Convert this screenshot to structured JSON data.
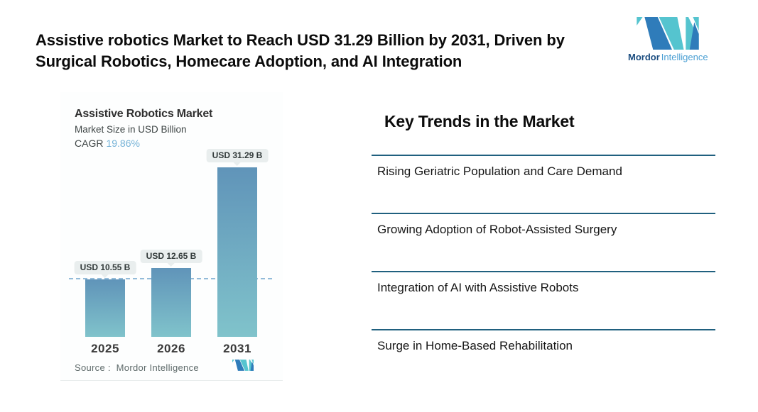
{
  "headline": {
    "text": "Assistive robotics Market to Reach USD 31.29 Billion by 2031, Driven by Surgical Robotics, Homecare Adoption, and AI Integration"
  },
  "brand": {
    "word_bold": "Mordor",
    "word_light": "Intelligence",
    "logo_teal": "#55c4cf",
    "logo_blue": "#2f7cba"
  },
  "chart": {
    "title": "Assistive Robotics Market",
    "subtitle": "Market Size in USD Billion",
    "cagr_label": "CAGR",
    "cagr_value": "19.86%",
    "source_label": "Source :",
    "source_value": "Mordor Intelligence",
    "bars": [
      {
        "year": "2025",
        "label": "USD 10.55 B",
        "value": 10.55
      },
      {
        "year": "2026",
        "label": "USD 12.65 B",
        "value": 12.65
      },
      {
        "year": "2031",
        "label": "USD 31.29 B",
        "value": 31.29
      }
    ],
    "colors": {
      "bar_top": "#6094b9",
      "bar_bottom": "#80c3cb",
      "dashed_line": "#93bbd9",
      "pill_bg": "#e9eeee",
      "divider": "#20607f",
      "cagr_value": "#74b2d7"
    }
  },
  "chart_data": {
    "type": "bar",
    "title": "Assistive Robotics Market",
    "subtitle": "Market Size in USD Billion",
    "cagr": "19.86%",
    "unit": "USD Billion",
    "categories": [
      "2025",
      "2026",
      "2031"
    ],
    "values": [
      10.55,
      12.65,
      31.29
    ],
    "data_labels": [
      "USD 10.55 B",
      "USD 12.65 B",
      "USD 31.29 B"
    ],
    "reference_line": {
      "y": 10.55,
      "style": "dashed"
    },
    "legend": false,
    "grid": false,
    "source": "Mordor Intelligence"
  },
  "trends": {
    "heading": "Key Trends in the Market",
    "items": [
      {
        "label": "Rising Geriatric Population and Care Demand"
      },
      {
        "label": "Growing Adoption of Robot-Assisted Surgery"
      },
      {
        "label": "Integration of AI with Assistive Robots"
      },
      {
        "label": "Surge in Home-Based Rehabilitation"
      }
    ]
  }
}
